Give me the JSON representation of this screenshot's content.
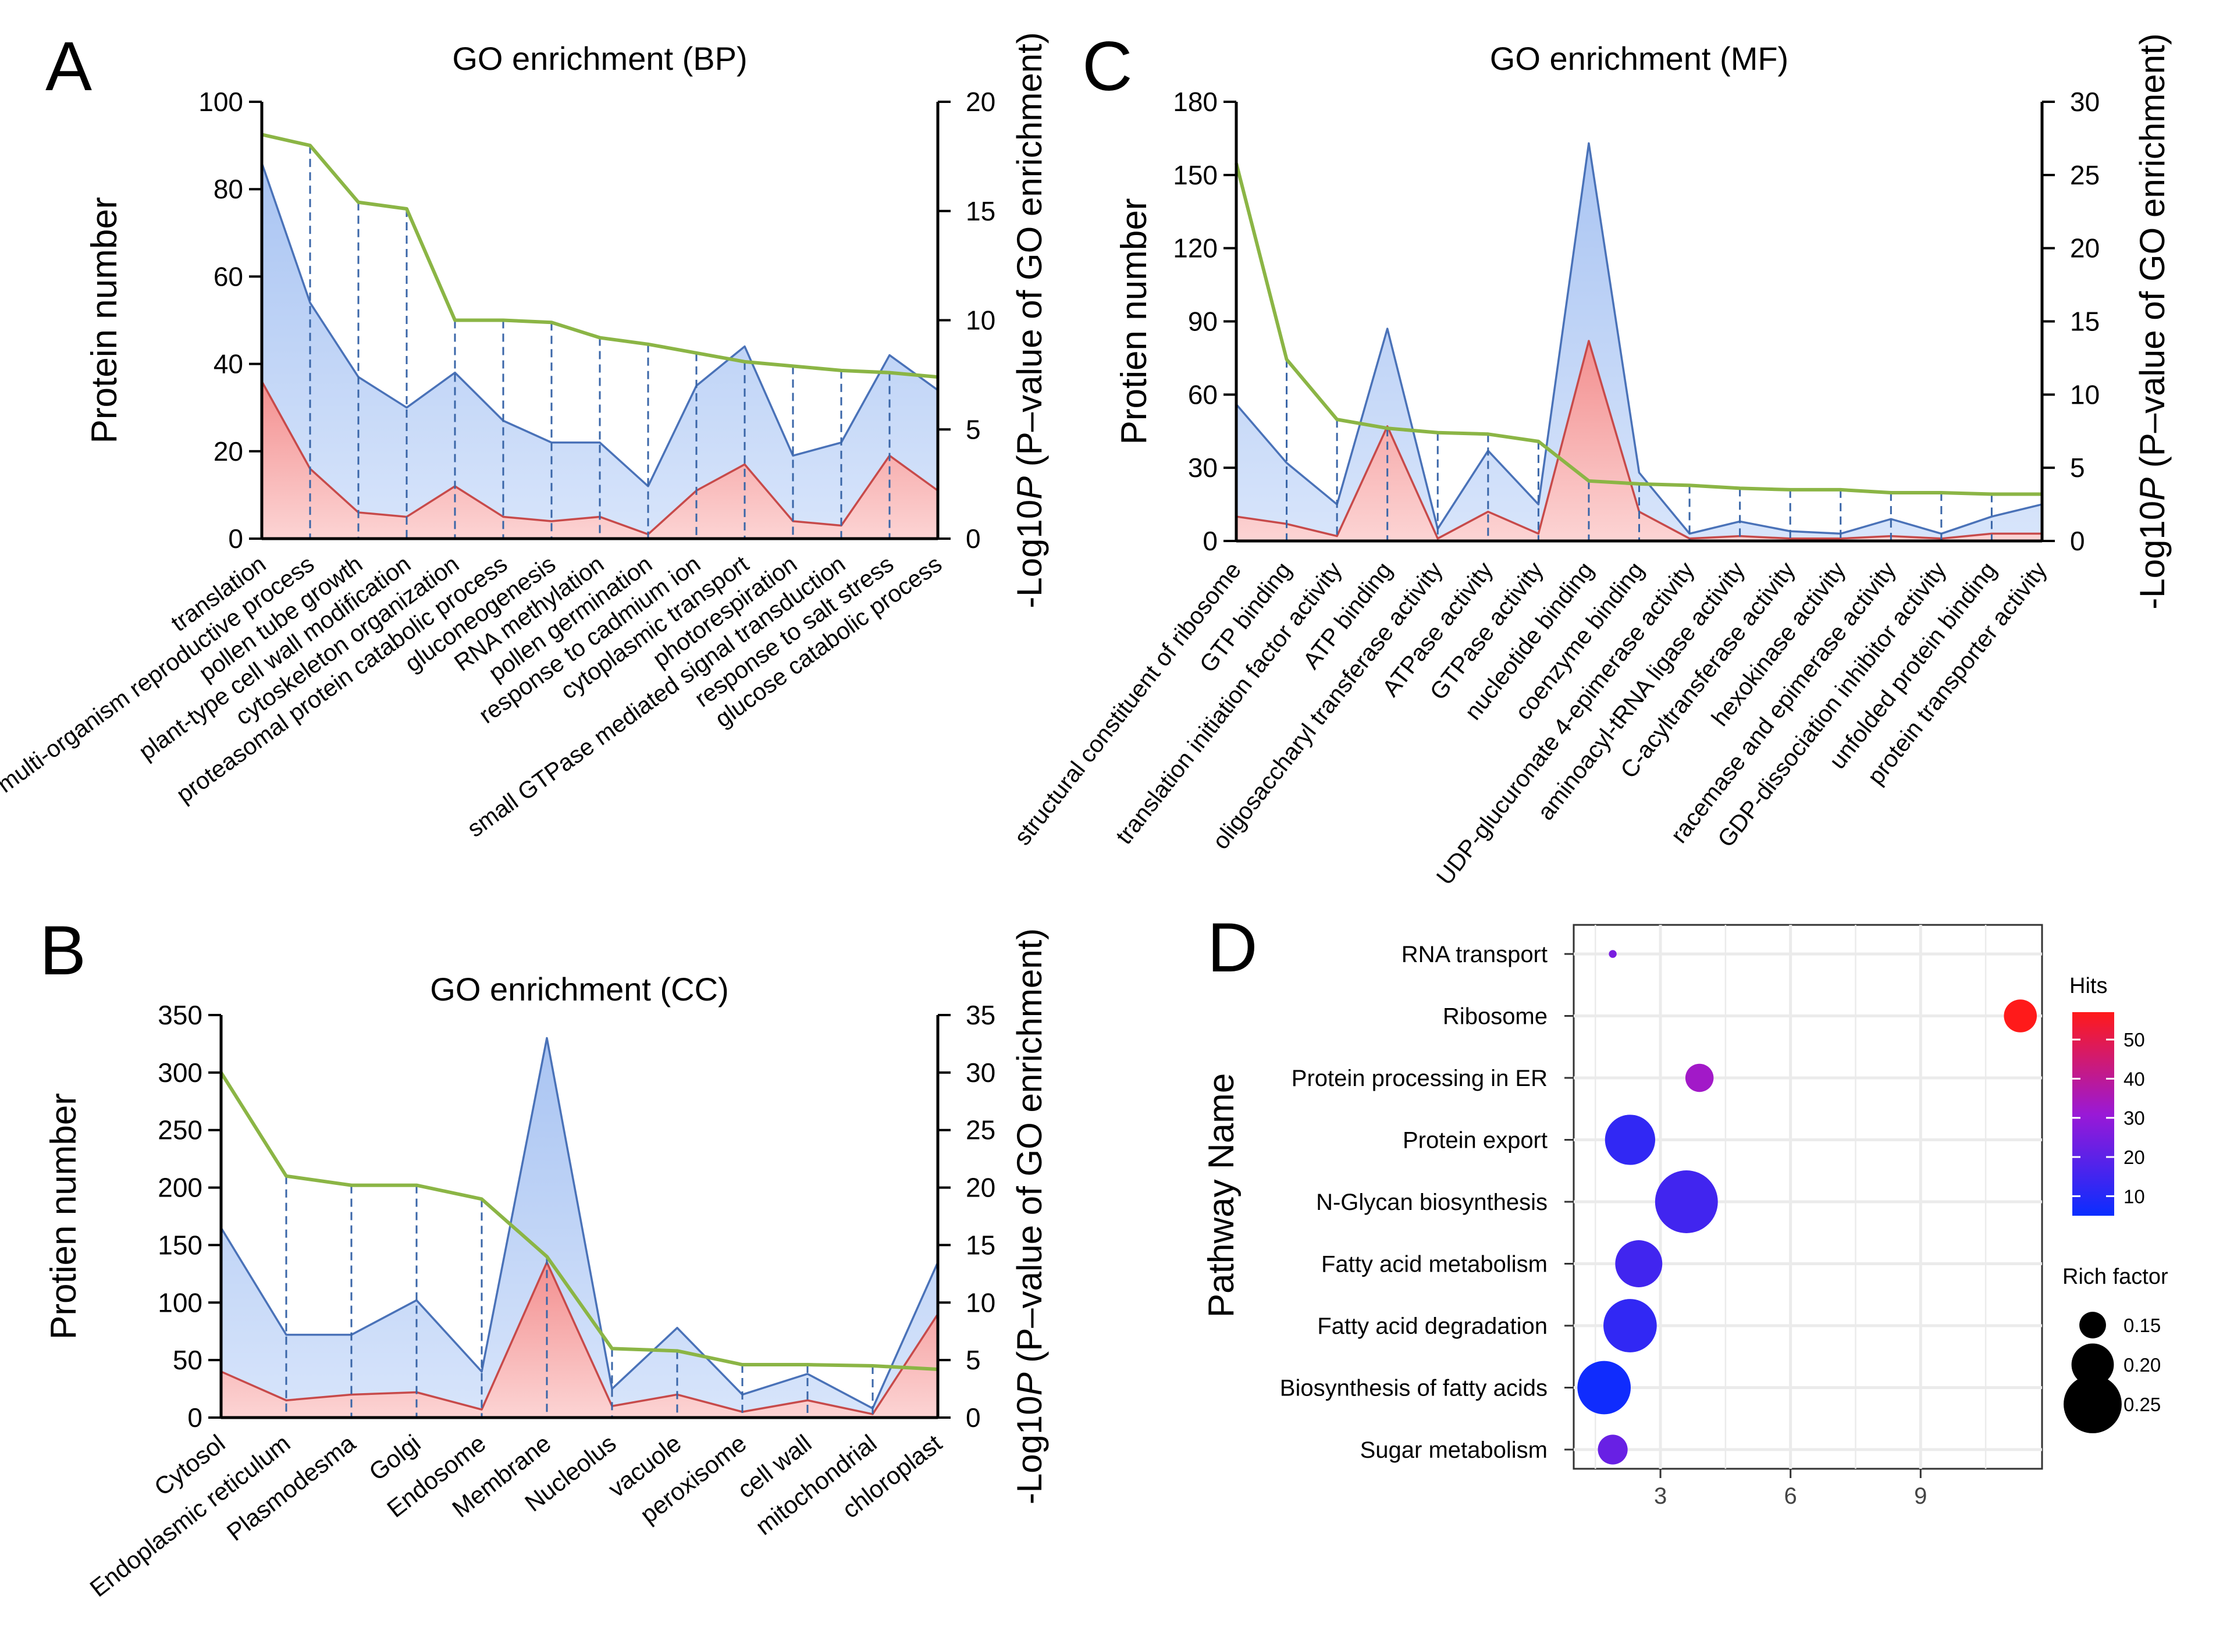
{
  "figure": {
    "panels": {
      "A": {
        "letter": "A"
      },
      "B": {
        "letter": "B"
      },
      "C": {
        "letter": "C"
      },
      "D": {
        "letter": "D"
      }
    }
  },
  "colors": {
    "total_line": "#4a72b8",
    "total_fill_top": "#a9c4f2",
    "total_fill_bottom": "#d8e5fb",
    "sub_line": "#c74a4a",
    "sub_fill_top": "#f38f8f",
    "sub_fill_bottom": "#fcd4d4",
    "pvalue_line": "#8bb545",
    "dash": "#3a66a8"
  },
  "chart_data": [
    {
      "id": "A",
      "type": "area",
      "title": "GO enrichment (BP)",
      "ylabel": "Protein number",
      "y2label_pre": "-Log10",
      "y2label_p": "P",
      "y2label_post": " (P–value of GO enrichment)",
      "ylim": [
        0,
        100
      ],
      "yticks": [
        0,
        20,
        40,
        60,
        80,
        100
      ],
      "y2lim": [
        0,
        20
      ],
      "y2ticks": [
        0,
        5,
        10,
        15,
        20
      ],
      "categories": [
        "translation",
        "multi-organism reproductive process",
        "pollen tube growth",
        "plant-type cell wall modification",
        "cytoskeleton organization",
        "proteasomal protein catabolic process",
        "gluconeogenesis",
        "RNA methylation",
        "pollen germination",
        "response to cadmium ion",
        "cytoplasmic transport",
        "photorespiration",
        "small GTPase mediated signal transduction",
        "response to salt stress",
        "glucose catabolic process"
      ],
      "series": [
        {
          "name": "Protein number (total)",
          "values": [
            86,
            54,
            37,
            30,
            38,
            27,
            22,
            22,
            12,
            35,
            44,
            19,
            22,
            42,
            34
          ]
        },
        {
          "name": "Protein number (subset)",
          "values": [
            36,
            16,
            6,
            5,
            12,
            5,
            4,
            5,
            1,
            11,
            17,
            4,
            3,
            19,
            11
          ]
        },
        {
          "name": "-Log10P",
          "axis": "right",
          "values": [
            18.5,
            18.0,
            15.4,
            15.1,
            10.0,
            10.0,
            9.9,
            9.2,
            8.9,
            8.5,
            8.1,
            7.9,
            7.7,
            7.6,
            7.4
          ]
        }
      ]
    },
    {
      "id": "B",
      "type": "area",
      "title": "GO enrichment (CC)",
      "ylabel": "Protien number",
      "y2label_pre": "-Log10",
      "y2label_p": "P",
      "y2label_post": " (P–value of GO enrichment)",
      "ylim": [
        0,
        350
      ],
      "yticks": [
        0,
        50,
        100,
        150,
        200,
        250,
        300,
        350
      ],
      "y2lim": [
        0,
        35
      ],
      "y2ticks": [
        0,
        5,
        10,
        15,
        20,
        25,
        30,
        35
      ],
      "categories": [
        "Cytosol",
        "Endoplasmic reticulum",
        "Plasmodesma",
        "Golgi",
        "Endosome",
        "Membrane",
        "Nucleolus",
        "vacuole",
        "peroxisome",
        "cell wall",
        "mitochondrial",
        "chloroplast"
      ],
      "series": [
        {
          "name": "Protein number (total)",
          "values": [
            165,
            72,
            72,
            102,
            40,
            330,
            25,
            78,
            20,
            38,
            8,
            135
          ]
        },
        {
          "name": "Protein number (subset)",
          "values": [
            40,
            15,
            20,
            22,
            7,
            135,
            10,
            20,
            5,
            15,
            3,
            90
          ]
        },
        {
          "name": "-Log10P",
          "axis": "right",
          "values": [
            30,
            21,
            20.2,
            20.2,
            19,
            14,
            6,
            5.8,
            4.6,
            4.6,
            4.5,
            4.2
          ]
        }
      ]
    },
    {
      "id": "C",
      "type": "area",
      "title": "GO enrichment (MF)",
      "ylabel": "Protien number",
      "y2label_pre": "-Log10",
      "y2label_p": "P",
      "y2label_post": " (P–value of GO enrichment)",
      "ylim": [
        0,
        180
      ],
      "yticks": [
        0,
        30,
        60,
        90,
        120,
        150,
        180
      ],
      "y2lim": [
        0,
        30
      ],
      "y2ticks": [
        0,
        5,
        10,
        15,
        20,
        25,
        30
      ],
      "categories": [
        "structural constituent of ribosome",
        "GTP binding",
        "translation initiation factor activity",
        "ATP binding",
        "oligosaccharyl transferase activity",
        "ATPase activity",
        "GTPase activity",
        "nucleotide binding",
        "coenzyme binding",
        "UDP-glucuronate 4-epimerase activity",
        "aminoacyl-tRNA ligase activity",
        "C-acyltransferase activity",
        "hexokinase activity",
        "racemase and epimerase activity",
        "GDP-dissociation inhibitor activity",
        "unfolded protein binding",
        "protein transporter activity"
      ],
      "series": [
        {
          "name": "Protein number (total)",
          "values": [
            56,
            32,
            15,
            87,
            5,
            37,
            15,
            163,
            28,
            3,
            8,
            4,
            3,
            9,
            3,
            10,
            15
          ]
        },
        {
          "name": "Protein number (subset)",
          "values": [
            10,
            7,
            2,
            47,
            1,
            12,
            3,
            82,
            12,
            1,
            2,
            1,
            1,
            2,
            1,
            3,
            3
          ]
        },
        {
          "name": "-Log10P",
          "axis": "right",
          "values": [
            25.8,
            12.4,
            8.3,
            7.7,
            7.4,
            7.3,
            6.8,
            4.1,
            3.9,
            3.8,
            3.6,
            3.5,
            3.5,
            3.3,
            3.3,
            3.2,
            3.2
          ]
        }
      ]
    },
    {
      "id": "D",
      "type": "scatter",
      "title": "",
      "ylabel": "Pathway Name",
      "xlabel": "",
      "xlim": [
        1,
        11.8
      ],
      "xticks": [
        3,
        6,
        9
      ],
      "categories": [
        "RNA transport",
        "Ribosome",
        "Protein processing in ER",
        "Protein export",
        "N-Glycan biosynthesis",
        "Fatty acid metabolism",
        "Fatty acid degradation",
        "Biosynthesis of fatty acids",
        "Sugar metabolism"
      ],
      "points": [
        {
          "pathway": "RNA transport",
          "x": 1.9,
          "hits": 25,
          "rich_factor": 0.09
        },
        {
          "pathway": "Ribosome",
          "x": 11.3,
          "hits": 57,
          "rich_factor": 0.17
        },
        {
          "pathway": "Protein processing in ER",
          "x": 3.9,
          "hits": 33,
          "rich_factor": 0.155
        },
        {
          "pathway": "Protein export",
          "x": 2.3,
          "hits": 12,
          "rich_factor": 0.225
        },
        {
          "pathway": "N-Glycan biosynthesis",
          "x": 3.6,
          "hits": 15,
          "rich_factor": 0.265
        },
        {
          "pathway": "Fatty acid metabolism",
          "x": 2.5,
          "hits": 15,
          "rich_factor": 0.215
        },
        {
          "pathway": "Fatty acid degradation",
          "x": 2.3,
          "hits": 12,
          "rich_factor": 0.235
        },
        {
          "pathway": "Biosynthesis of fatty acids",
          "x": 1.7,
          "hits": 6,
          "rich_factor": 0.235
        },
        {
          "pathway": "Sugar metabolism",
          "x": 1.9,
          "hits": 22,
          "rich_factor": 0.16
        }
      ],
      "color_legend": {
        "title": "Hits",
        "ticks": [
          10,
          20,
          30,
          40,
          50
        ],
        "range": [
          5,
          57
        ],
        "low_color": "#0a2dff",
        "mid_color": "#9a19d6",
        "high_color": "#ff1a1a"
      },
      "size_legend": {
        "title": "Rich factor",
        "values": [
          0.15,
          0.2,
          0.25
        ],
        "labels": [
          "0.15",
          "0.20",
          "0.25"
        ]
      }
    }
  ]
}
